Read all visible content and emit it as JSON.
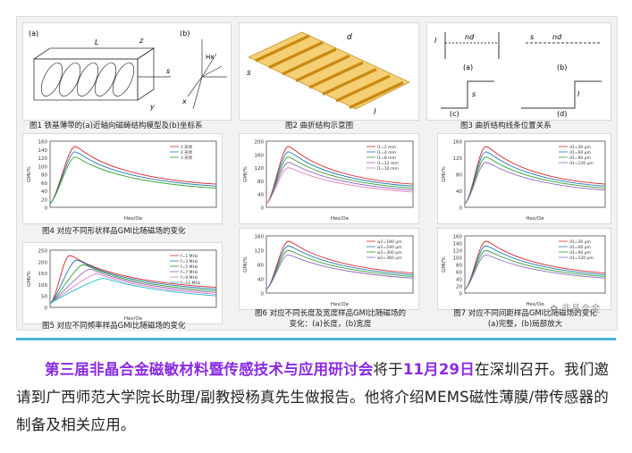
{
  "figure": {
    "fig1_caption": "图1 铁基薄带的(a)近轴向磁畴结构模型及(b)坐标系",
    "fig2_caption": "图2 曲折结构示意图",
    "fig3_caption": "图3 曲折结构线条位置关系",
    "fig4_caption": "图4 对应不同形状样品GMI比随磁场的变化",
    "fig5_caption": "图5 对应不同频率样品GMI比随磁场的变化",
    "fig6_caption_line1": "图6 对应不同长度及宽度样品GMI比随磁场的",
    "fig6_caption_line2": "变化：(a)长度，(b)宽度",
    "fig7_caption_line1": "图7 对应不同间距样品GMI比随磁场的变化",
    "fig7_caption_line2": "(a)完整，(b)局部放大",
    "watermark": "非晶合金",
    "fig1_labels": {
      "a": "(a)",
      "b": "(b)",
      "L": "L",
      "s": "s",
      "z": "z",
      "y": "y",
      "x": "x",
      "w": "w",
      "hx": "Hx"
    },
    "fig2_labels": {
      "d": "d",
      "s": "s",
      "l": "l"
    },
    "fig3_labels": {
      "a": "(a)",
      "b": "(b)",
      "c": "(c)",
      "d": "(d)",
      "nd": "nd",
      "s": "s",
      "l": "l"
    },
    "fig4_legend": [
      "1 形状",
      "2 形状",
      "3 形状"
    ],
    "fig5_legend": [
      "f=1 MHz",
      "f=3 MHz",
      "f=5 MHz",
      "f=7 MHz",
      "f=9 MHz",
      "f=11 MHz"
    ],
    "fig6a_legend": [
      "l1=2 mm",
      "l1=4 mm",
      "l1=8 mm",
      "l1=12 mm",
      "l1=16 mm"
    ],
    "fig6b_legend": [
      "w1=180 μm",
      "w1=240 μm",
      "w1=300 μm",
      "w1=360 μm"
    ],
    "fig7a_legend": [
      "d1=30 μm",
      "d1=60 μm",
      "d1=90 μm",
      "d1=120 μm"
    ],
    "fig7b_legend": [
      "d1=30 μm",
      "d1=60 μm",
      "d1=90 μm",
      "d1=120 μm"
    ],
    "ylabel": "GMI/%",
    "xlabel": "Hex/Oe"
  },
  "paragraph": {
    "highlight1": "第三届非晶合金磁敏材料暨传感技术与应用研讨会",
    "text1": "将于",
    "highlight2": "11月29日",
    "text2": "在深圳召开。我们邀请到广西师范大学院长助理/副教授杨真先生做报告。他将介绍MEMS磁性薄膜/带传感器的制备及相关应用。"
  },
  "colors": {
    "accent_line": "#49b3da",
    "highlight": "#8a2be2",
    "strip": "#e3a525"
  }
}
